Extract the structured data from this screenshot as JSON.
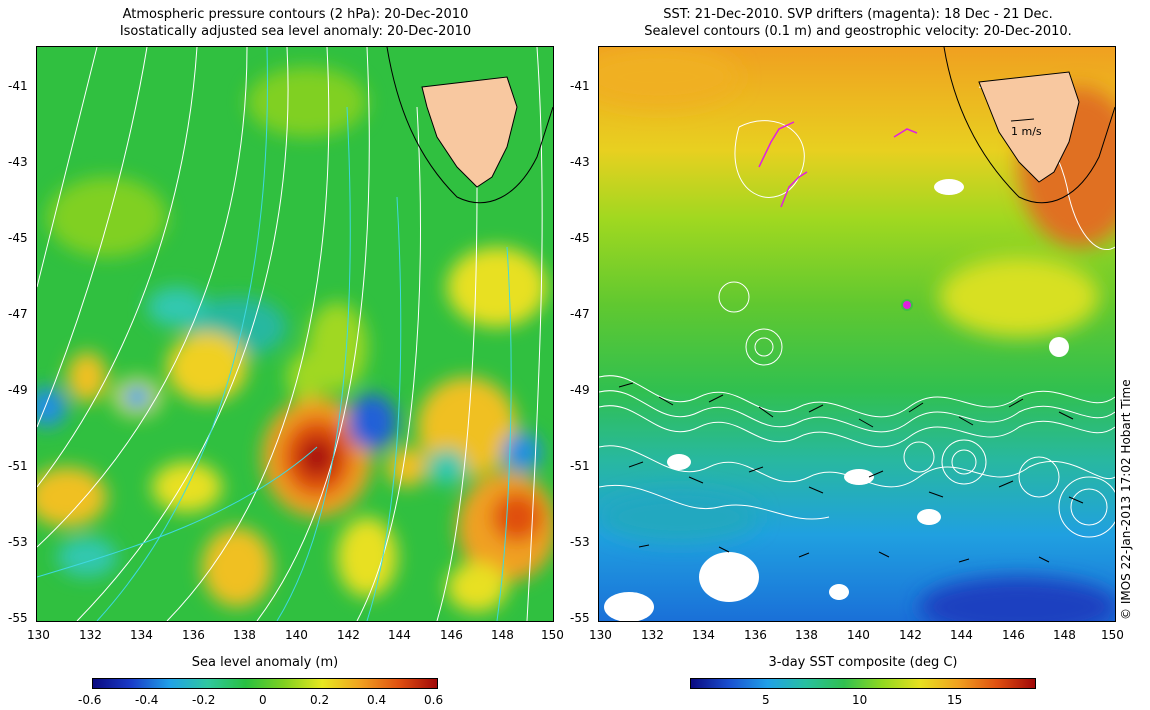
{
  "left_panel": {
    "title_line1": "Atmospheric pressure contours (2 hPa): 20-Dec-2010",
    "title_line2": "Isostatically adjusted sea level anomaly: 20-Dec-2010",
    "colorbar_title": "Sea level anomaly (m)",
    "colorbar_ticks": [
      "-0.6",
      "-0.4",
      "-0.2",
      "0",
      "0.2",
      "0.4",
      "0.6"
    ]
  },
  "right_panel": {
    "title_line1": "SST: 21-Dec-2010. SVP drifters (magenta): 18 Dec - 21 Dec.",
    "title_line2": "Sealevel contours (0.1 m) and geostrophic velocity: 20-Dec-2010.",
    "colorbar_title": "3-day SST composite (deg C)",
    "colorbar_ticks": [
      "5",
      "10",
      "15"
    ],
    "velocity_scale_label": "1 m/s"
  },
  "x_ticks": [
    "130",
    "132",
    "134",
    "136",
    "138",
    "140",
    "142",
    "144",
    "146",
    "148",
    "150"
  ],
  "y_ticks": [
    "-41",
    "-43",
    "-45",
    "-47",
    "-49",
    "-51",
    "-53",
    "-55"
  ],
  "credit": "© IMOS 22-Jan-2013 17:02 Hobart Time",
  "colors": {
    "land": "#f8c8a0",
    "drifter": "#e020e0",
    "contour": "#ffffff"
  }
}
